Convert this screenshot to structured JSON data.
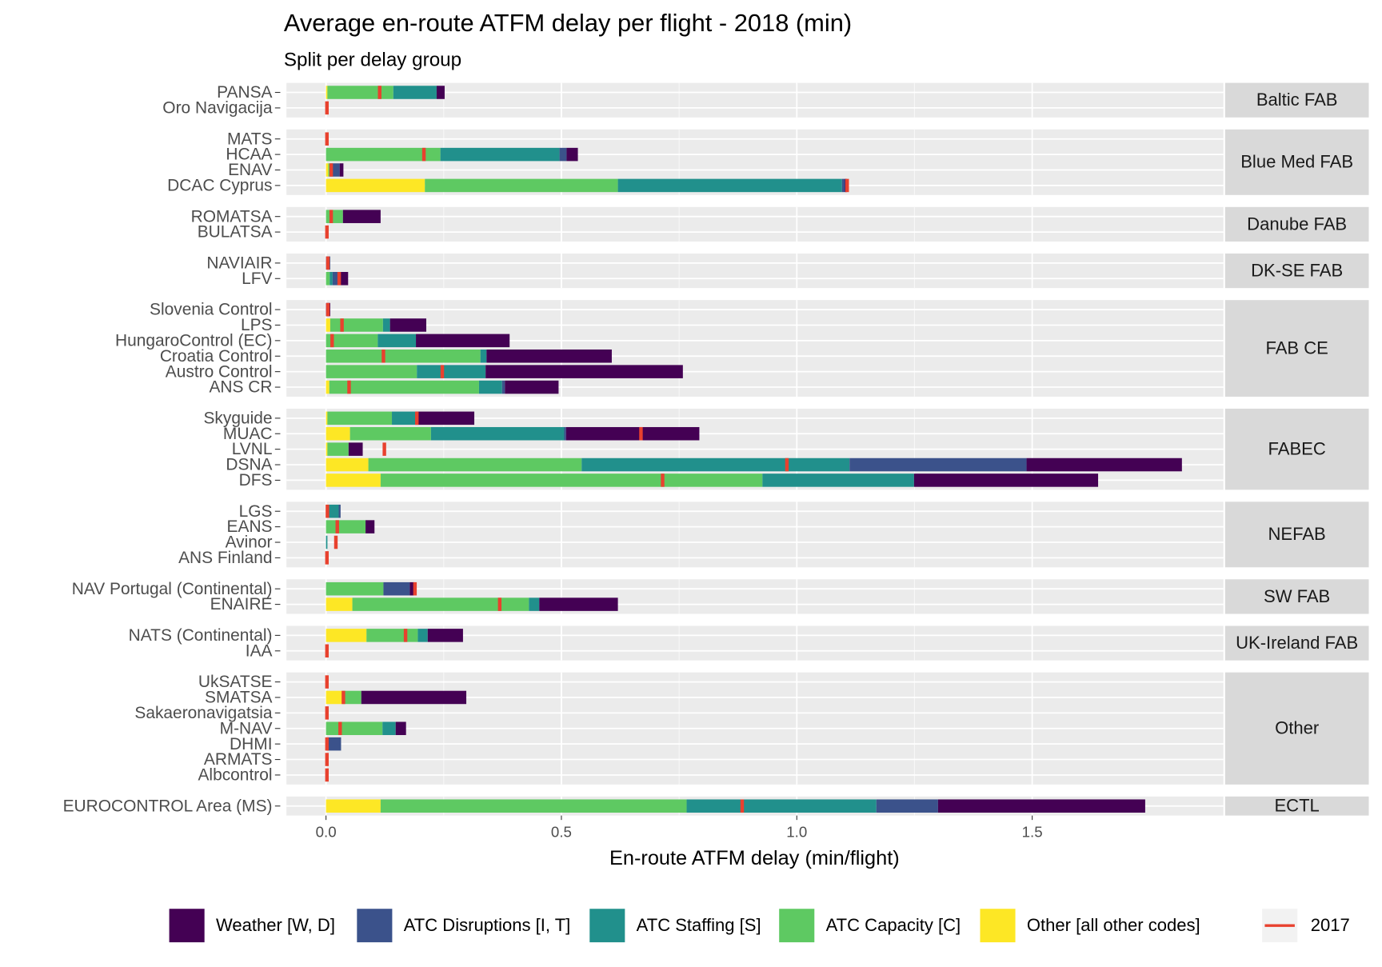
{
  "chart_data": {
    "type": "bar",
    "title": "Average en-route ATFM delay per flight - 2018 (min)",
    "subtitle": "Split per delay group",
    "xlabel": "En-route ATFM delay (min/flight)",
    "xlim": [
      -0.084,
      1.906
    ],
    "xticks": [
      {
        "value": 0,
        "label": "0.0"
      },
      0.5,
      {
        "value": 1,
        "label": "1.0"
      },
      1.5
    ],
    "grid": true,
    "panels": [
      {
        "label": "Baltic FAB",
        "categories": [
          "PANSA",
          "Oro Navigacija"
        ]
      },
      {
        "label": "Blue Med FAB",
        "categories": [
          "MATS",
          "HCAA",
          "ENAV",
          "DCAC Cyprus"
        ]
      },
      {
        "label": "Danube FAB",
        "categories": [
          "ROMATSA",
          "BULATSA"
        ]
      },
      {
        "label": "DK-SE FAB",
        "categories": [
          "NAVIAIR",
          "LFV"
        ]
      },
      {
        "label": "FAB CE",
        "categories": [
          "Slovenia Control",
          "LPS",
          "HungaroControl (EC)",
          "Croatia Control",
          "Austro Control",
          "ANS CR"
        ]
      },
      {
        "label": "FABEC",
        "categories": [
          "Skyguide",
          "MUAC",
          "LVNL",
          "DSNA",
          "DFS"
        ]
      },
      {
        "label": "NEFAB",
        "categories": [
          "LGS",
          "EANS",
          "Avinor",
          "ANS Finland"
        ]
      },
      {
        "label": "SW FAB",
        "categories": [
          "NAV Portugal (Continental)",
          "ENAIRE"
        ]
      },
      {
        "label": "UK-Ireland FAB",
        "categories": [
          "NATS (Continental)",
          "IAA"
        ]
      },
      {
        "label": "Other",
        "categories": [
          "UkSATSE",
          "SMATSA",
          "Sakaeronavigatsia",
          "M-NAV",
          "DHMI",
          "ARMATS",
          "Albcontrol"
        ]
      },
      {
        "label": "ECTL",
        "categories": [
          "EUROCONTROL Area (MS)"
        ]
      }
    ],
    "series": [
      {
        "name": "Weather [W, D]",
        "color": "#440154",
        "values": [
          0.017,
          0,
          0,
          0.024,
          0.008,
          0.004,
          0.08,
          0,
          0,
          0.021,
          0.009,
          0.077,
          0.199,
          0.266,
          0.419,
          0.114,
          0.125,
          0.283,
          0.03,
          0.33,
          0.391,
          0,
          0.019,
          0,
          0,
          0.009,
          0.167,
          0.075,
          0,
          0,
          0.223,
          0,
          0.022,
          0,
          0,
          0,
          0.44
        ]
      },
      {
        "name": "ATC Disruptions [I, T]",
        "color": "#3b528b",
        "values": [
          0,
          0,
          0,
          0.015,
          0.019,
          0.006,
          0,
          0,
          0.009,
          0.012,
          0,
          0,
          0,
          0,
          0,
          0.006,
          0,
          0.004,
          0,
          0.376,
          0,
          0.004,
          0,
          0,
          0,
          0.056,
          0,
          0,
          0,
          0,
          0,
          0,
          0,
          0.032,
          0,
          0,
          0.131
        ]
      },
      {
        "name": "ATC Staffing [S]",
        "color": "#21908c",
        "values": [
          0.092,
          0,
          0,
          0.253,
          0,
          0.476,
          0,
          0,
          0,
          0.006,
          0,
          0.015,
          0.081,
          0.013,
          0.146,
          0.049,
          0.05,
          0.283,
          0,
          0.569,
          0.322,
          0.022,
          0,
          0.003,
          0,
          0,
          0.022,
          0.021,
          0,
          0,
          0,
          0,
          0.028,
          0,
          0,
          0,
          0.403
        ]
      },
      {
        "name": "ATC Capacity [C]",
        "color": "#5ec962",
        "values": [
          0.14,
          0,
          0,
          0.243,
          0.005,
          0.41,
          0.036,
          0,
          0,
          0.008,
          0,
          0.112,
          0.11,
          0.328,
          0.193,
          0.318,
          0.137,
          0.172,
          0.045,
          0.453,
          0.811,
          0.005,
          0.084,
          0,
          0,
          0.122,
          0.375,
          0.109,
          0,
          0,
          0.039,
          0,
          0.12,
          0,
          0,
          0,
          0.65
        ]
      },
      {
        "name": "Other [all other codes]",
        "color": "#fde725",
        "values": [
          0.003,
          0,
          0,
          0,
          0.005,
          0.21,
          0,
          0,
          0,
          0,
          0,
          0.009,
          0,
          0,
          0,
          0.007,
          0.003,
          0.051,
          0.003,
          0.09,
          0.116,
          0,
          0,
          0,
          0,
          0,
          0.056,
          0.086,
          0,
          0,
          0.036,
          0,
          0,
          0,
          0,
          0,
          0.116
        ]
      }
    ],
    "reference": {
      "name": "2017",
      "color": "#e8412e",
      "values": [
        0.114,
        0.002,
        0.002,
        0.208,
        0.011,
        1.107,
        0.011,
        0.002,
        0.004,
        0.028,
        0.004,
        0.034,
        0.013,
        0.122,
        0.247,
        0.049,
        0.193,
        0.669,
        0.124,
        0.979,
        0.715,
        0.003,
        0.024,
        0.021,
        0.002,
        0.189,
        0.369,
        0.169,
        0.002,
        0.002,
        0.037,
        0.002,
        0.03,
        0.002,
        0.002,
        0.002,
        0.884
      ]
    }
  }
}
